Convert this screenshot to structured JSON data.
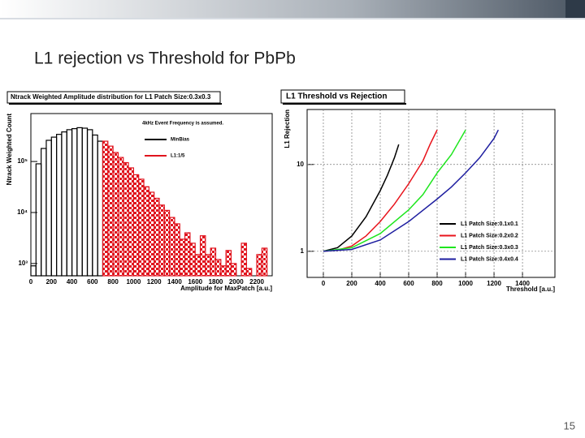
{
  "slide": {
    "title": "L1 rejection vs Threshold for PbPb",
    "page": 15
  },
  "chart_data": [
    {
      "type": "histogram",
      "title": "Ntrack Weighted Amplitude distribution for L1 Patch Size:0.3x0.3",
      "annotation": "4kHz Event Frequency is assumed.",
      "x_label": "Amplitude for MaxPatch [a.u.]",
      "y_label": "Ntrack Weighted Count",
      "log_y": true,
      "grid": false,
      "xlim": [
        0,
        2350
      ],
      "ylim": [
        575,
        870000
      ],
      "xticks": [
        0,
        200,
        400,
        600,
        800,
        1000,
        1200,
        1400,
        1600,
        1800,
        2000,
        2200
      ],
      "yticks": [
        {
          "value": 1000,
          "label": "10³"
        },
        {
          "value": 10000,
          "label": "10⁴"
        },
        {
          "value": 100000,
          "label": "10⁵"
        }
      ],
      "bins": [
        0,
        50,
        100,
        150,
        200,
        250,
        300,
        350,
        400,
        450,
        500,
        550,
        600,
        650,
        700,
        750,
        800,
        850,
        900,
        950,
        1000,
        1050,
        1100,
        1150,
        1200,
        1250,
        1300,
        1350,
        1400,
        1450,
        1500,
        1550,
        1600,
        1650,
        1700,
        1750,
        1800,
        1850,
        1900,
        1950,
        2000,
        2050,
        2100,
        2150,
        2200,
        2250,
        2300,
        2350
      ],
      "series": [
        {
          "name": "MinBias",
          "color": "#000000",
          "values": [
            900,
            90000,
            180000,
            260000,
            300000,
            340000,
            380000,
            420000,
            440000,
            460000,
            450000,
            420000,
            330000,
            250000,
            null,
            null,
            null,
            null,
            null,
            null,
            null,
            null,
            null,
            null,
            null,
            null,
            null,
            null,
            null,
            null,
            null,
            null,
            null,
            null,
            null,
            null,
            null,
            null,
            null,
            null,
            null,
            null,
            null,
            null,
            null,
            null,
            null
          ]
        },
        {
          "name": "L1:1/5",
          "color": "#e0141e",
          "values": [
            null,
            null,
            null,
            null,
            null,
            null,
            null,
            null,
            null,
            null,
            null,
            null,
            null,
            null,
            250000,
            200000,
            150000,
            120000,
            95000,
            75000,
            55000,
            45000,
            32000,
            25000,
            19000,
            14000,
            11000,
            8000,
            6000,
            3000,
            4000,
            2500,
            1500,
            3500,
            1500,
            2000,
            1200,
            900,
            1800,
            1000,
            null,
            2500,
            800,
            null,
            1500,
            2000,
            null
          ]
        }
      ]
    },
    {
      "type": "line",
      "title": "L1 Threshold vs Rejection",
      "x_label": "Threshold [a.u.]",
      "y_label": "L1 Rejection",
      "log_y": true,
      "grid": true,
      "xlim": [
        -114,
        1628
      ],
      "ylim": [
        0.5,
        43
      ],
      "xticks": [
        0,
        200,
        400,
        600,
        800,
        1000,
        1200,
        1400
      ],
      "yticks": [
        1,
        10
      ],
      "series": [
        {
          "name": "L1 Patch Size:0.1x0.1",
          "color": "#000000",
          "x": [
            0,
            100,
            200,
            300,
            400,
            450,
            500,
            530
          ],
          "values": [
            1,
            1.1,
            1.5,
            2.5,
            5,
            7.5,
            12,
            17
          ]
        },
        {
          "name": "L1 Patch Size:0.2x0.2",
          "color": "#e8141c",
          "x": [
            0,
            100,
            200,
            300,
            400,
            500,
            600,
            700,
            750,
            800
          ],
          "values": [
            1,
            1.03,
            1.15,
            1.5,
            2.2,
            3.5,
            6,
            11,
            17,
            25
          ]
        },
        {
          "name": "L1 Patch Size:0.3x0.3",
          "color": "#1ee61e",
          "x": [
            0,
            200,
            400,
            600,
            700,
            800,
            900,
            1000
          ],
          "values": [
            1,
            1.1,
            1.6,
            3,
            4.5,
            8,
            13,
            25
          ]
        },
        {
          "name": "L1 Patch Size:0.4x0.4",
          "color": "#1e1ea0",
          "x": [
            0,
            200,
            400,
            600,
            800,
            900,
            1000,
            1100,
            1200,
            1230
          ],
          "values": [
            1,
            1.05,
            1.35,
            2.2,
            4,
            5.5,
            8,
            12,
            20,
            25
          ]
        }
      ]
    }
  ]
}
